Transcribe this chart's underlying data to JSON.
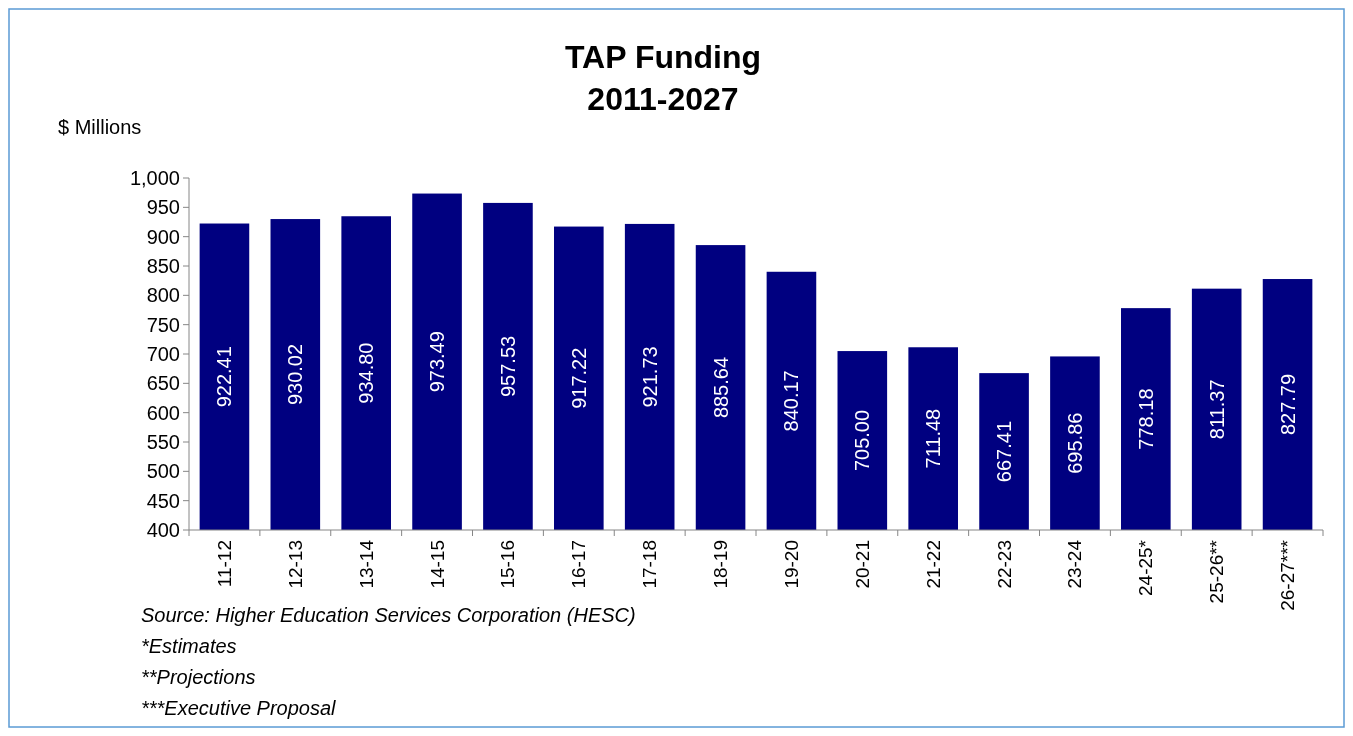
{
  "chart_data": {
    "type": "bar",
    "title": "TAP Funding\n2011-2027",
    "ylabel": "$ Millions",
    "categories": [
      "11-12",
      "12-13",
      "13-14",
      "14-15",
      "15-16",
      "16-17",
      "17-18",
      "18-19",
      "19-20",
      "20-21",
      "21-22",
      "22-23",
      "23-24",
      "24-25*",
      "25-26**",
      "26-27***"
    ],
    "values": [
      922.41,
      930.02,
      934.8,
      973.49,
      957.53,
      917.22,
      921.73,
      885.64,
      840.17,
      705.0,
      711.48,
      667.41,
      695.86,
      778.18,
      811.37,
      827.79
    ],
    "value_labels": [
      "922.41",
      "930.02",
      "934.80",
      "973.49",
      "957.53",
      "917.22",
      "921.73",
      "885.64",
      "840.17",
      "705.00",
      "711.48",
      "667.41",
      "695.86",
      "778.18",
      "811.37",
      "827.79"
    ],
    "color": "#000080",
    "ylim": [
      400,
      1000
    ],
    "yticks": [
      {
        "value": 400,
        "label": "400"
      },
      {
        "value": 450,
        "label": "450"
      },
      {
        "value": 500,
        "label": "500"
      },
      {
        "value": 550,
        "label": "550"
      },
      {
        "value": 600,
        "label": "600"
      },
      {
        "value": 650,
        "label": "650"
      },
      {
        "value": 700,
        "label": "700"
      },
      {
        "value": 750,
        "label": "750"
      },
      {
        "value": 800,
        "label": "800"
      },
      {
        "value": 850,
        "label": "850"
      },
      {
        "value": 900,
        "label": "900"
      },
      {
        "value": 950,
        "label": "950"
      },
      {
        "value": 1000,
        "label": "1,000"
      }
    ],
    "grid": false,
    "annotations": [
      "Source: Higher Education Services Corporation (HESC)",
      "*Estimates",
      "**Projections",
      "***Executive Proposal"
    ]
  }
}
